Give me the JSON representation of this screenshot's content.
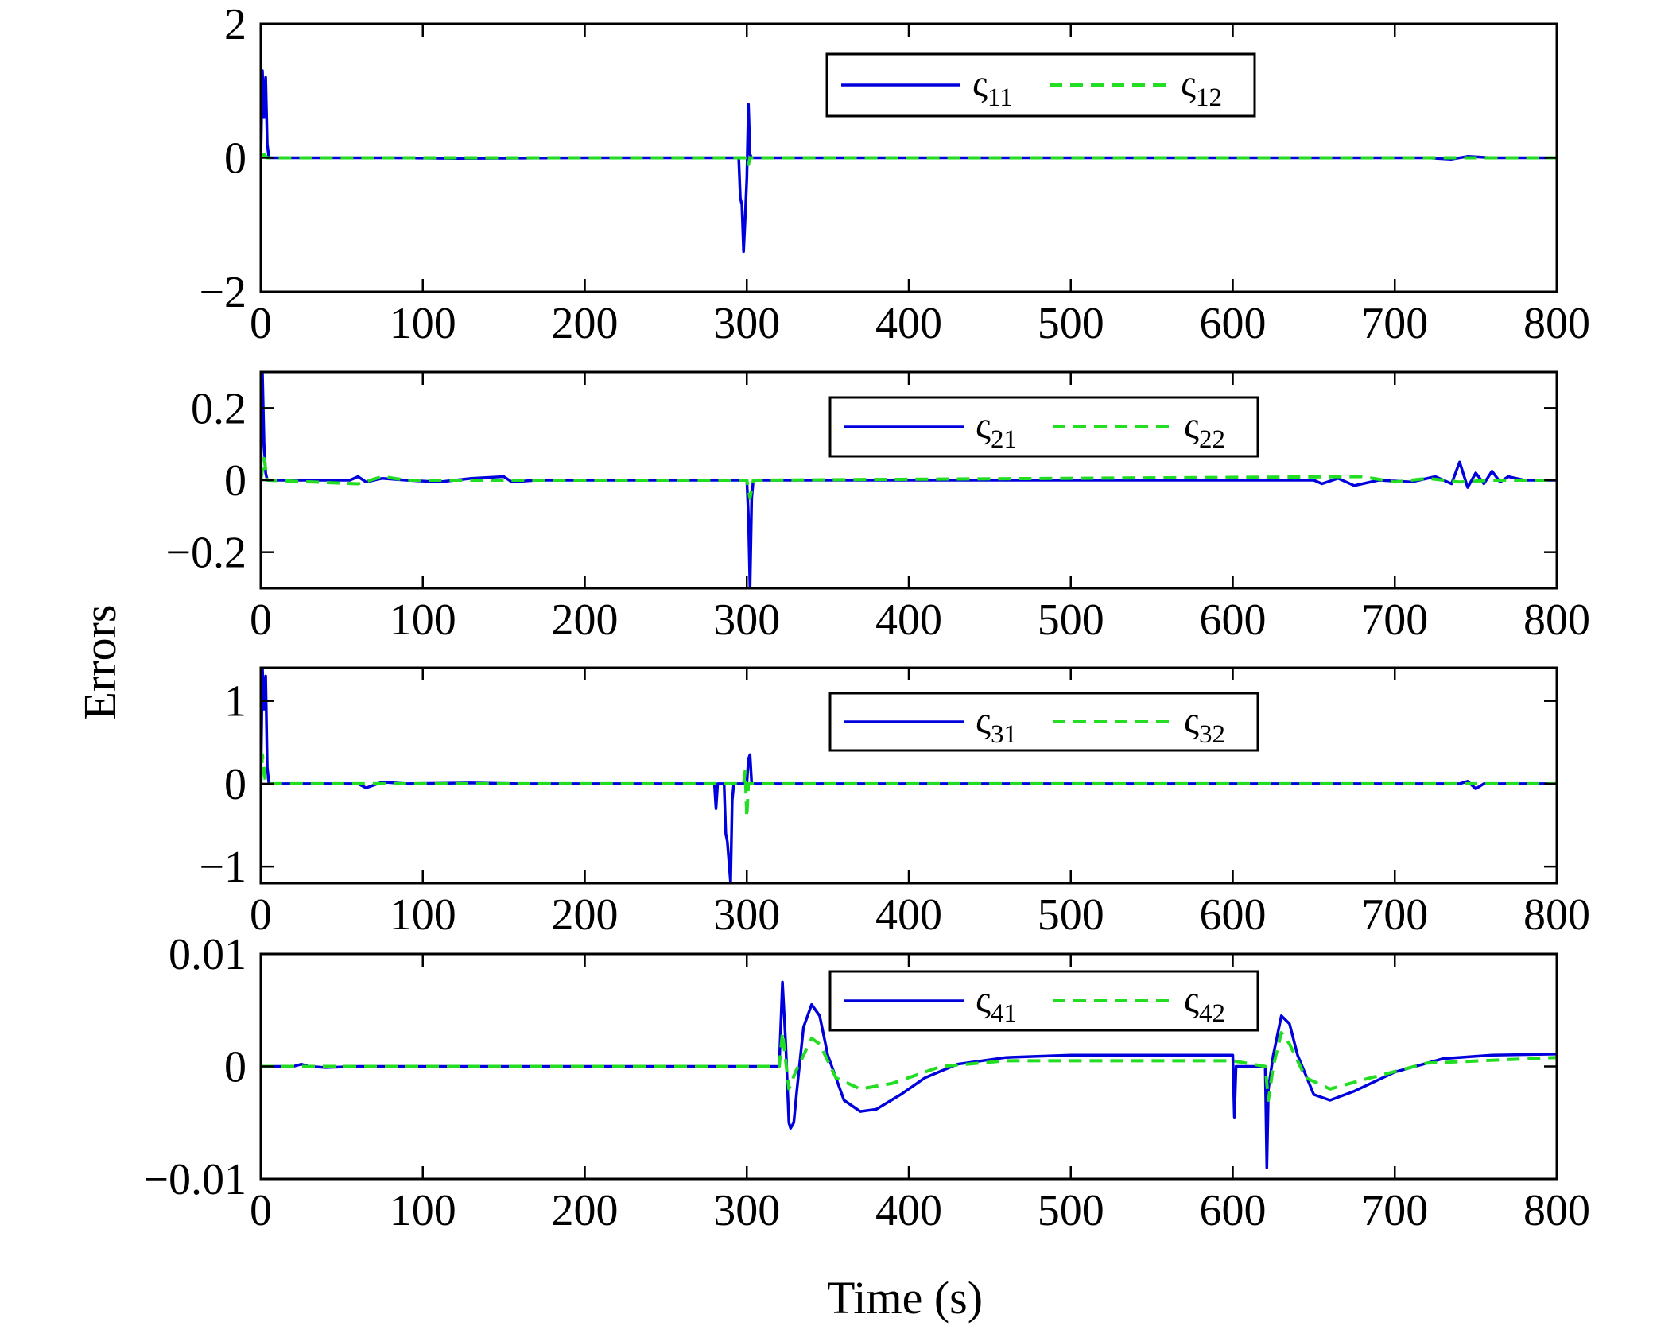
{
  "figure": {
    "ylabel": "Errors",
    "xlabel": "Time (s)"
  },
  "chart_data": [
    {
      "type": "line",
      "xlim": [
        0,
        800
      ],
      "ylim": [
        -2,
        2
      ],
      "xticks": [
        0,
        100,
        200,
        300,
        400,
        500,
        600,
        700,
        800
      ],
      "xtick_labels": [
        "0",
        "100",
        "200",
        "300",
        "400",
        "500",
        "600",
        "700",
        "800"
      ],
      "yticks": [
        -2,
        0,
        2
      ],
      "ytick_labels": [
        "−2",
        "0",
        "2"
      ],
      "legend_position": "top-right",
      "series": [
        {
          "name": "ς",
          "subscript": "11",
          "color": "#0000dd",
          "dash": "solid",
          "points": [
            [
              0,
              0
            ],
            [
              1,
              1.3
            ],
            [
              2,
              0.6
            ],
            [
              3,
              1.2
            ],
            [
              4,
              0.2
            ],
            [
              5,
              0
            ],
            [
              80,
              0
            ],
            [
              120,
              -0.01
            ],
            [
              200,
              0
            ],
            [
              295,
              0
            ],
            [
              296,
              -0.6
            ],
            [
              297,
              -0.7
            ],
            [
              298,
              -1.4
            ],
            [
              299,
              -0.9
            ],
            [
              300,
              -0.3
            ],
            [
              301,
              0.8
            ],
            [
              302,
              0.05
            ],
            [
              303,
              0
            ],
            [
              720,
              0
            ],
            [
              735,
              -0.02
            ],
            [
              745,
              0.02
            ],
            [
              760,
              0
            ],
            [
              800,
              0
            ]
          ]
        },
        {
          "name": "ς",
          "subscript": "12",
          "color": "#22dd22",
          "dash": "dashed",
          "points": [
            [
              0,
              0
            ],
            [
              2,
              0.05
            ],
            [
              4,
              0
            ],
            [
              299,
              0
            ],
            [
              300,
              0.03
            ],
            [
              301,
              -0.1
            ],
            [
              302,
              0
            ],
            [
              800,
              0
            ]
          ]
        }
      ]
    },
    {
      "type": "line",
      "xlim": [
        0,
        800
      ],
      "ylim": [
        -0.3,
        0.3
      ],
      "xticks": [
        0,
        100,
        200,
        300,
        400,
        500,
        600,
        700,
        800
      ],
      "xtick_labels": [
        "0",
        "100",
        "200",
        "300",
        "400",
        "500",
        "600",
        "700",
        "800"
      ],
      "yticks": [
        -0.2,
        0,
        0.2
      ],
      "ytick_labels": [
        "−0.2",
        "0",
        "0.2"
      ],
      "legend_position": "top-right",
      "series": [
        {
          "name": "ς",
          "subscript": "21",
          "color": "#0000dd",
          "dash": "solid",
          "points": [
            [
              0,
              0
            ],
            [
              1,
              0.3
            ],
            [
              2,
              0.1
            ],
            [
              3,
              0.02
            ],
            [
              4,
              0
            ],
            [
              55,
              0
            ],
            [
              60,
              0.01
            ],
            [
              65,
              -0.005
            ],
            [
              75,
              0.005
            ],
            [
              90,
              0
            ],
            [
              110,
              -0.005
            ],
            [
              130,
              0.005
            ],
            [
              150,
              0.01
            ],
            [
              155,
              -0.005
            ],
            [
              170,
              0
            ],
            [
              300,
              0
            ],
            [
              301,
              -0.1
            ],
            [
              302,
              -0.3
            ],
            [
              303,
              -0.05
            ],
            [
              304,
              0
            ],
            [
              650,
              0
            ],
            [
              655,
              -0.01
            ],
            [
              665,
              0.005
            ],
            [
              675,
              -0.015
            ],
            [
              690,
              0
            ],
            [
              710,
              -0.005
            ],
            [
              725,
              0.01
            ],
            [
              735,
              -0.01
            ],
            [
              740,
              0.05
            ],
            [
              745,
              -0.02
            ],
            [
              750,
              0.02
            ],
            [
              755,
              -0.01
            ],
            [
              760,
              0.025
            ],
            [
              765,
              -0.005
            ],
            [
              770,
              0.01
            ],
            [
              780,
              0
            ],
            [
              800,
              0
            ]
          ]
        },
        {
          "name": "ς",
          "subscript": "22",
          "color": "#22dd22",
          "dash": "dashed",
          "points": [
            [
              0,
              0
            ],
            [
              2,
              0.06
            ],
            [
              4,
              0
            ],
            [
              60,
              -0.01
            ],
            [
              75,
              0.01
            ],
            [
              90,
              0
            ],
            [
              150,
              0
            ],
            [
              300,
              0
            ],
            [
              302,
              -0.05
            ],
            [
              304,
              0
            ],
            [
              680,
              0.01
            ],
            [
              700,
              -0.005
            ],
            [
              720,
              0.005
            ],
            [
              740,
              -0.005
            ],
            [
              760,
              0
            ],
            [
              800,
              0
            ]
          ]
        }
      ]
    },
    {
      "type": "line",
      "xlim": [
        0,
        800
      ],
      "ylim": [
        -1.2,
        1.4
      ],
      "xticks": [
        0,
        100,
        200,
        300,
        400,
        500,
        600,
        700,
        800
      ],
      "xtick_labels": [
        "0",
        "100",
        "200",
        "300",
        "400",
        "500",
        "600",
        "700",
        "800"
      ],
      "yticks": [
        -1,
        0,
        1
      ],
      "ytick_labels": [
        "−1",
        "0",
        "1"
      ],
      "legend_position": "top-right",
      "series": [
        {
          "name": "ς",
          "subscript": "31",
          "color": "#0000dd",
          "dash": "solid",
          "points": [
            [
              0,
              0
            ],
            [
              1,
              1.4
            ],
            [
              2,
              0.9
            ],
            [
              3,
              1.3
            ],
            [
              4,
              0.2
            ],
            [
              5,
              0
            ],
            [
              60,
              0
            ],
            [
              65,
              -0.05
            ],
            [
              75,
              0.02
            ],
            [
              90,
              0
            ],
            [
              130,
              0.01
            ],
            [
              160,
              0
            ],
            [
              280,
              0
            ],
            [
              281,
              -0.3
            ],
            [
              282,
              0
            ],
            [
              286,
              0
            ],
            [
              287,
              -0.6
            ],
            [
              288,
              -0.7
            ],
            [
              290,
              -1.2
            ],
            [
              291,
              -0.2
            ],
            [
              292,
              0
            ],
            [
              300,
              0
            ],
            [
              301,
              0.3
            ],
            [
              302,
              0.35
            ],
            [
              303,
              0
            ],
            [
              740,
              0
            ],
            [
              745,
              0.03
            ],
            [
              750,
              -0.06
            ],
            [
              755,
              0
            ],
            [
              800,
              0
            ]
          ]
        },
        {
          "name": "ς",
          "subscript": "32",
          "color": "#22dd22",
          "dash": "dashed",
          "points": [
            [
              0,
              0
            ],
            [
              1,
              0.35
            ],
            [
              3,
              0
            ],
            [
              298,
              0
            ],
            [
              299,
              0.15
            ],
            [
              300,
              -0.4
            ],
            [
              301,
              0
            ],
            [
              800,
              0
            ]
          ]
        }
      ]
    },
    {
      "type": "line",
      "xlim": [
        0,
        800
      ],
      "ylim": [
        -0.01,
        0.01
      ],
      "xticks": [
        0,
        100,
        200,
        300,
        400,
        500,
        600,
        700,
        800
      ],
      "xtick_labels": [
        "0",
        "100",
        "200",
        "300",
        "400",
        "500",
        "600",
        "700",
        "800"
      ],
      "yticks": [
        -0.01,
        0,
        0.01
      ],
      "ytick_labels": [
        "−0.01",
        "0",
        "0.01"
      ],
      "legend_position": "top-right",
      "series": [
        {
          "name": "ς",
          "subscript": "41",
          "color": "#0000dd",
          "dash": "solid",
          "points": [
            [
              0,
              0
            ],
            [
              20,
              0
            ],
            [
              25,
              0.0002
            ],
            [
              30,
              0
            ],
            [
              40,
              -0.0001
            ],
            [
              60,
              0
            ],
            [
              320,
              0
            ],
            [
              322,
              0.0075
            ],
            [
              324,
              0.002
            ],
            [
              326,
              -0.005
            ],
            [
              327,
              -0.0055
            ],
            [
              329,
              -0.005
            ],
            [
              331,
              -0.002
            ],
            [
              335,
              0.0035
            ],
            [
              340,
              0.0055
            ],
            [
              345,
              0.0045
            ],
            [
              350,
              0.001
            ],
            [
              360,
              -0.003
            ],
            [
              370,
              -0.004
            ],
            [
              380,
              -0.0038
            ],
            [
              395,
              -0.0025
            ],
            [
              410,
              -0.001
            ],
            [
              430,
              0.0002
            ],
            [
              460,
              0.0008
            ],
            [
              500,
              0.001
            ],
            [
              600,
              0.001
            ],
            [
              601,
              -0.0045
            ],
            [
              602,
              0
            ],
            [
              620,
              0
            ],
            [
              621,
              -0.009
            ],
            [
              622,
              -0.002
            ],
            [
              625,
              0.001
            ],
            [
              630,
              0.0045
            ],
            [
              635,
              0.0038
            ],
            [
              640,
              0.001
            ],
            [
              650,
              -0.0025
            ],
            [
              660,
              -0.003
            ],
            [
              675,
              -0.0022
            ],
            [
              700,
              -0.0005
            ],
            [
              730,
              0.0007
            ],
            [
              760,
              0.001
            ],
            [
              800,
              0.0011
            ]
          ]
        },
        {
          "name": "ς",
          "subscript": "42",
          "color": "#22dd22",
          "dash": "dashed",
          "points": [
            [
              0,
              0
            ],
            [
              320,
              0
            ],
            [
              322,
              0.003
            ],
            [
              326,
              -0.002
            ],
            [
              330,
              -0.0005
            ],
            [
              340,
              0.0025
            ],
            [
              345,
              0.002
            ],
            [
              355,
              -0.001
            ],
            [
              370,
              -0.002
            ],
            [
              390,
              -0.0015
            ],
            [
              420,
              0
            ],
            [
              460,
              0.0005
            ],
            [
              600,
              0.0005
            ],
            [
              620,
              0
            ],
            [
              622,
              -0.003
            ],
            [
              625,
              0
            ],
            [
              630,
              0.003
            ],
            [
              635,
              0.002
            ],
            [
              645,
              -0.001
            ],
            [
              660,
              -0.002
            ],
            [
              680,
              -0.0012
            ],
            [
              720,
              0.0003
            ],
            [
              800,
              0.0008
            ]
          ]
        }
      ]
    }
  ]
}
